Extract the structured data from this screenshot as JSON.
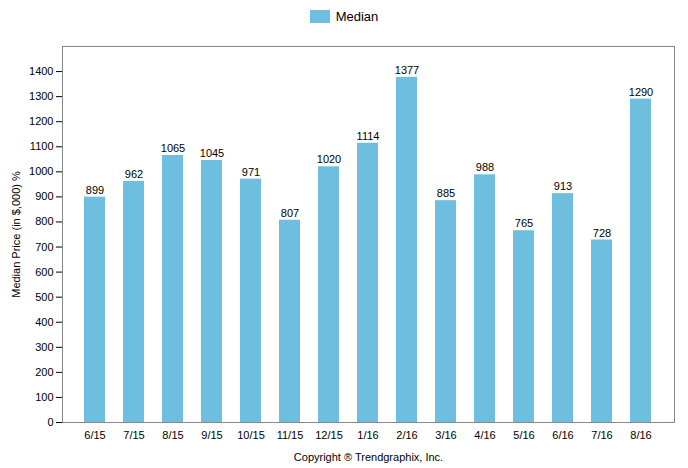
{
  "chart_data": {
    "type": "bar",
    "categories": [
      "6/15",
      "7/15",
      "8/15",
      "9/15",
      "10/15",
      "11/15",
      "12/15",
      "1/16",
      "2/16",
      "3/16",
      "4/16",
      "5/16",
      "6/16",
      "7/16",
      "8/16"
    ],
    "series": [
      {
        "name": "Median",
        "color": "#6DBEDF",
        "values": [
          899,
          962,
          1065,
          1045,
          971,
          807,
          1020,
          1114,
          1377,
          885,
          988,
          765,
          913,
          728,
          1290
        ]
      }
    ],
    "xlabel": "Copyright ® Trendgraphix, Inc.",
    "ylabel": "Median Price (in $,000) %",
    "ylim": [
      0,
      1500
    ],
    "yticks": [
      0,
      100,
      200,
      300,
      400,
      500,
      600,
      700,
      800,
      900,
      1000,
      1100,
      1200,
      1300,
      1400
    ],
    "grid": false,
    "legend": "top",
    "data_labels": true
  }
}
